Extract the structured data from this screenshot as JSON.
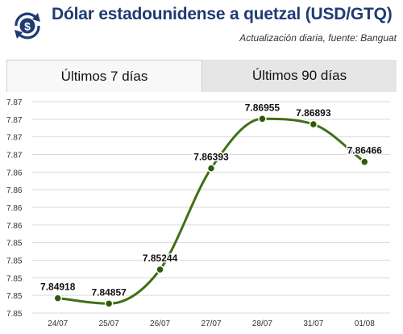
{
  "header": {
    "icon": "currency-exchange-icon",
    "title": "Dólar estadounidense a quetzal (USD/GTQ)",
    "subtitle": "Actualización diaria, fuente: Banguat"
  },
  "tabs": [
    {
      "label": "Últimos 7 días",
      "active": true
    },
    {
      "label": "Últimos 90 días",
      "active": false
    }
  ],
  "colors": {
    "line": "#3f6f16",
    "marker": "#2f5a0c",
    "title": "#1f3b73",
    "icon": "#1f3b73",
    "grid": "#d9d9d9"
  },
  "chart_data": {
    "type": "line",
    "categories": [
      "24/07",
      "25/07",
      "26/07",
      "27/07",
      "28/07",
      "31/07",
      "01/08"
    ],
    "values": [
      7.84918,
      7.84857,
      7.85244,
      7.86393,
      7.86955,
      7.86893,
      7.86466
    ],
    "data_labels": [
      "7.84918",
      "7.84857",
      "7.85244",
      "7.86393",
      "7.86955",
      "7.86893",
      "7.86466"
    ],
    "y_tick_labels": [
      "7.87",
      "7.87",
      "7.87",
      "7.87",
      "7.86",
      "7.86",
      "7.86",
      "7.86",
      "7.85",
      "7.85",
      "7.85",
      "7.85",
      "7.85"
    ],
    "ylim": [
      7.8475,
      7.8715
    ],
    "grid": true,
    "title": "",
    "xlabel": "",
    "ylabel": ""
  }
}
